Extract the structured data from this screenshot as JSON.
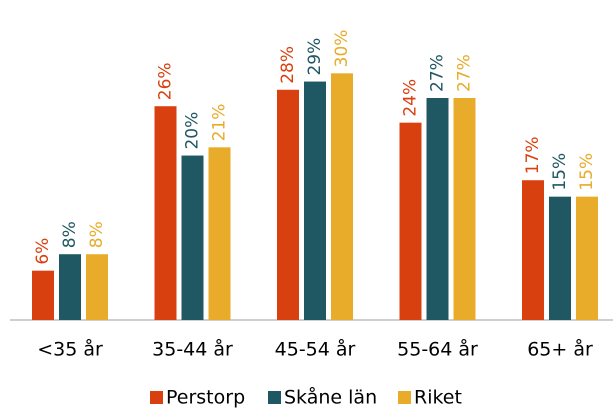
{
  "chart_data": {
    "type": "bar",
    "categories": [
      "<35 år",
      "35-44 år",
      "45-54 år",
      "55-64 år",
      "65+ år"
    ],
    "series": [
      {
        "name": "Perstorp",
        "color": "#d9400f",
        "values": [
          6,
          26,
          28,
          24,
          17
        ],
        "value_labels": [
          "6%",
          "26%",
          "28%",
          "24%",
          "17%"
        ]
      },
      {
        "name": "Skåne län",
        "color": "#1f5762",
        "values": [
          8,
          20,
          29,
          27,
          15
        ],
        "value_labels": [
          "8%",
          "20%",
          "29%",
          "27%",
          "15%"
        ]
      },
      {
        "name": "Riket",
        "color": "#e8ab2a",
        "values": [
          8,
          21,
          30,
          27,
          15
        ],
        "value_labels": [
          "8%",
          "21%",
          "30%",
          "27%",
          "15%"
        ]
      }
    ],
    "ylim": [
      0,
      36
    ],
    "grid": false
  }
}
